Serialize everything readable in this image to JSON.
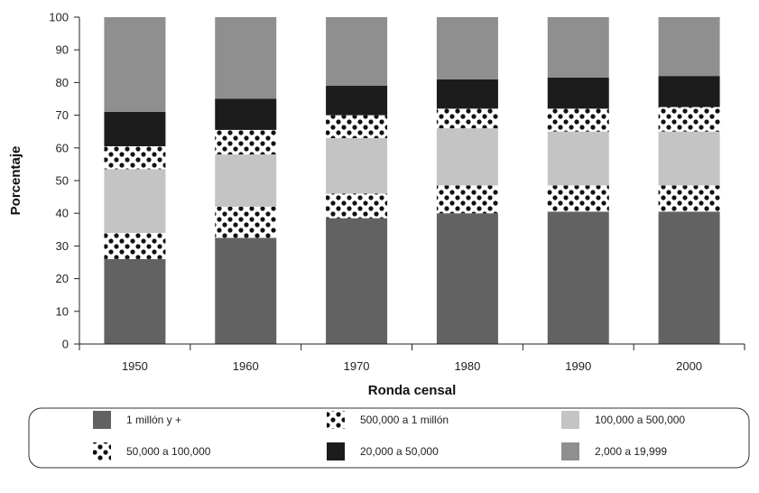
{
  "chart_data": {
    "type": "bar",
    "stacked": true,
    "xlabel": "Ronda censal",
    "ylabel": "Porcentaje",
    "ylim": [
      0,
      100
    ],
    "yticks": [
      0,
      10,
      20,
      30,
      40,
      50,
      60,
      70,
      80,
      90,
      100
    ],
    "categories": [
      "1950",
      "1960",
      "1970",
      "1980",
      "1990",
      "2000"
    ],
    "grid": false,
    "legend_position": "bottom",
    "series": [
      {
        "name": "1 millón y +",
        "pattern": "solid",
        "color": "#626262",
        "values": [
          26,
          32.5,
          38.5,
          40,
          40.5,
          40.5
        ]
      },
      {
        "name": "500,000 a 1 millón",
        "pattern": "dots",
        "color": "#111111",
        "values": [
          8,
          9.5,
          7.5,
          8.5,
          8,
          8
        ]
      },
      {
        "name": "100,000 a 500,000",
        "pattern": "solid",
        "color": "#c4c4c4",
        "values": [
          19.5,
          16,
          17,
          17.5,
          16.5,
          16.5
        ]
      },
      {
        "name": "50,000 a 100,000",
        "pattern": "dots",
        "color": "#111111",
        "values": [
          7,
          7.5,
          7,
          6,
          7,
          7.5
        ]
      },
      {
        "name": "20,000 a 50,000",
        "pattern": "solid",
        "color": "#1c1c1c",
        "values": [
          10.5,
          9.5,
          9,
          9,
          9.5,
          9.5
        ]
      },
      {
        "name": "2,000 a 19,999",
        "pattern": "solid",
        "color": "#8f8f8f",
        "values": [
          29,
          25,
          21,
          19,
          18.5,
          18
        ]
      }
    ]
  }
}
